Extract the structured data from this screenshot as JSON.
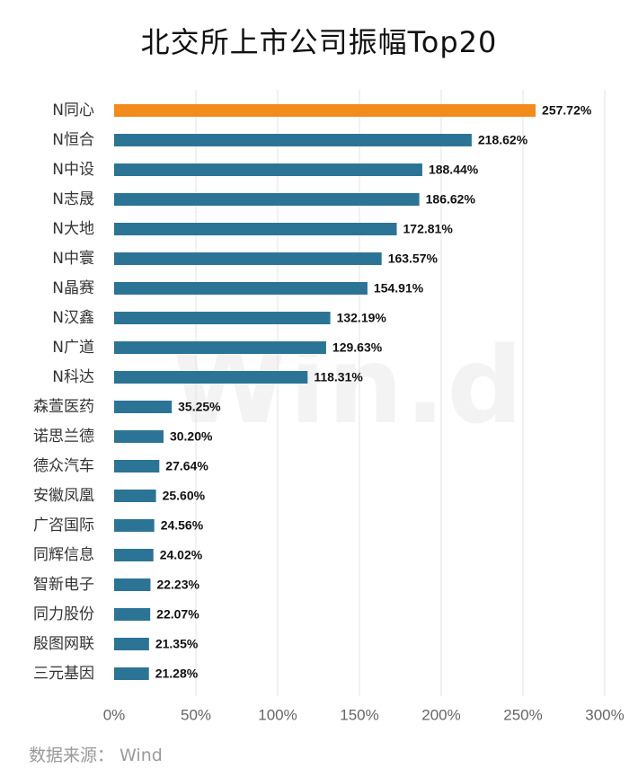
{
  "title": "北交所上市公司振幅Top20",
  "source": "数据来源：  Wind",
  "watermark": "Win.d",
  "colors": {
    "highlight": "#f28a1c",
    "bar": "#2b7495",
    "grid": "#e3e3e3",
    "watermark": "#f3f3f3"
  },
  "chart_data": {
    "type": "bar",
    "orientation": "horizontal",
    "title": "北交所上市公司振幅Top20",
    "categories": [
      "N同心",
      "N恒合",
      "N中设",
      "N志晟",
      "N大地",
      "N中寰",
      "N晶赛",
      "N汉鑫",
      "N广道",
      "N科达",
      "森萱医药",
      "诺思兰德",
      "德众汽车",
      "安徽凤凰",
      "广咨国际",
      "同辉信息",
      "智新电子",
      "同力股份",
      "殷图网联",
      "三元基因"
    ],
    "values": [
      257.72,
      218.62,
      188.44,
      186.62,
      172.81,
      163.57,
      154.91,
      132.19,
      129.63,
      118.31,
      35.25,
      30.2,
      27.64,
      25.6,
      24.56,
      24.02,
      22.23,
      22.07,
      21.35,
      21.28
    ],
    "value_labels": [
      "257.72%",
      "218.62%",
      "188.44%",
      "186.62%",
      "172.81%",
      "163.57%",
      "154.91%",
      "132.19%",
      "129.63%",
      "118.31%",
      "35.25%",
      "30.20%",
      "27.64%",
      "25.60%",
      "24.56%",
      "24.02%",
      "22.23%",
      "22.07%",
      "21.35%",
      "21.28%"
    ],
    "highlight_index": 0,
    "xlim": [
      0,
      300
    ],
    "x_ticks": [
      0,
      50,
      100,
      150,
      200,
      250,
      300
    ],
    "x_tick_labels": [
      "0%",
      "50%",
      "100%",
      "150%",
      "200%",
      "250%",
      "300%"
    ],
    "grid": true,
    "xlabel": "",
    "ylabel": ""
  }
}
